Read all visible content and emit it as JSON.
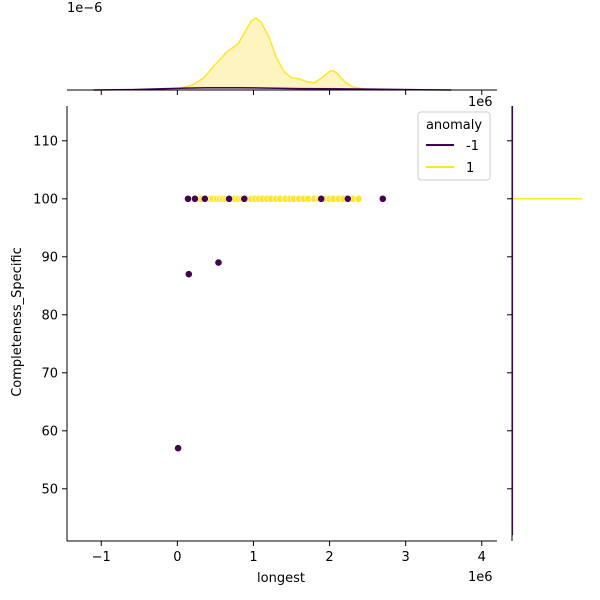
{
  "chart_data": {
    "type": "scatter",
    "title": "",
    "xlabel": "longest",
    "ylabel": "Completeness_Specific",
    "x_offset_label": "1e6",
    "top_marginal_offset_label": "1e−6",
    "right_marginal_offset_label": "1e6",
    "xlim": [
      -1.45,
      4.2
    ],
    "ylim": [
      41,
      116
    ],
    "x_ticks": [
      -1,
      0,
      1,
      2,
      3,
      4
    ],
    "x_tick_labels": [
      "−1",
      "0",
      "1",
      "2",
      "3",
      "4"
    ],
    "y_ticks": [
      50,
      60,
      70,
      80,
      90,
      100,
      110
    ],
    "y_tick_labels": [
      "50",
      "60",
      "70",
      "80",
      "90",
      "100",
      "110"
    ],
    "grid": false,
    "legend": {
      "title": "anomaly",
      "placement": "top-right",
      "entries": [
        {
          "label": "-1",
          "color": "#440154"
        },
        {
          "label": "1",
          "color": "#fde725"
        }
      ]
    },
    "series": [
      {
        "name": "1",
        "color": "#fde725",
        "points": [
          [
            0.22,
            100
          ],
          [
            0.28,
            100
          ],
          [
            0.32,
            100
          ],
          [
            0.38,
            100
          ],
          [
            0.43,
            100
          ],
          [
            0.47,
            100
          ],
          [
            0.52,
            100
          ],
          [
            0.56,
            100
          ],
          [
            0.6,
            100
          ],
          [
            0.64,
            100
          ],
          [
            0.7,
            100
          ],
          [
            0.75,
            100
          ],
          [
            0.8,
            100
          ],
          [
            0.85,
            100
          ],
          [
            0.9,
            100
          ],
          [
            0.97,
            100
          ],
          [
            1.02,
            100
          ],
          [
            1.07,
            100
          ],
          [
            1.12,
            100
          ],
          [
            1.18,
            100
          ],
          [
            1.23,
            100
          ],
          [
            1.3,
            100
          ],
          [
            1.35,
            100
          ],
          [
            1.42,
            100
          ],
          [
            1.48,
            100
          ],
          [
            1.53,
            100
          ],
          [
            1.6,
            100
          ],
          [
            1.66,
            100
          ],
          [
            1.72,
            100
          ],
          [
            1.8,
            100
          ],
          [
            1.86,
            100
          ],
          [
            1.93,
            100
          ],
          [
            2.0,
            100
          ],
          [
            2.05,
            100
          ],
          [
            2.12,
            100
          ],
          [
            2.18,
            100
          ],
          [
            2.3,
            100
          ],
          [
            2.38,
            100
          ]
        ]
      },
      {
        "name": "-1",
        "color": "#440154",
        "points": [
          [
            0.14,
            100
          ],
          [
            0.23,
            100
          ],
          [
            0.36,
            100
          ],
          [
            0.68,
            100
          ],
          [
            0.88,
            100
          ],
          [
            1.89,
            100
          ],
          [
            2.24,
            100
          ],
          [
            2.7,
            100
          ],
          [
            0.15,
            87
          ],
          [
            0.54,
            89
          ],
          [
            0.01,
            57
          ]
        ]
      }
    ],
    "top_marginal": {
      "type": "kde",
      "series": [
        {
          "name": "1",
          "color": "#fde725",
          "fill": "#fdf3b9",
          "x": [
            -0.4,
            0.0,
            0.2,
            0.35,
            0.5,
            0.65,
            0.8,
            0.9,
            0.97,
            1.03,
            1.1,
            1.2,
            1.3,
            1.4,
            1.5,
            1.6,
            1.7,
            1.8,
            1.9,
            2.0,
            2.05,
            2.1,
            2.2,
            2.3,
            2.45,
            2.7
          ],
          "density": [
            0.0,
            0.01,
            0.05,
            0.12,
            0.25,
            0.37,
            0.45,
            0.58,
            0.67,
            0.7,
            0.66,
            0.52,
            0.32,
            0.18,
            0.12,
            0.11,
            0.08,
            0.07,
            0.12,
            0.18,
            0.19,
            0.16,
            0.08,
            0.03,
            0.01,
            0.0
          ]
        },
        {
          "name": "-1",
          "color": "#440154",
          "fill": "#e8e0ec",
          "x": [
            -1.1,
            -0.6,
            -0.2,
            0.1,
            0.4,
            0.8,
            1.2,
            1.6,
            2.0,
            2.4,
            2.8,
            3.2,
            3.6
          ],
          "density": [
            0.0,
            0.004,
            0.012,
            0.018,
            0.022,
            0.022,
            0.018,
            0.014,
            0.012,
            0.01,
            0.006,
            0.002,
            0.0
          ]
        }
      ]
    },
    "right_marginal": {
      "type": "kde",
      "series": [
        {
          "name": "1",
          "color": "#fde725",
          "y": [
            100,
            100
          ],
          "density": [
            0,
            1
          ]
        },
        {
          "name": "-1",
          "color": "#440154",
          "y": [
            42,
            116
          ],
          "density": [
            0,
            0
          ]
        }
      ]
    }
  }
}
